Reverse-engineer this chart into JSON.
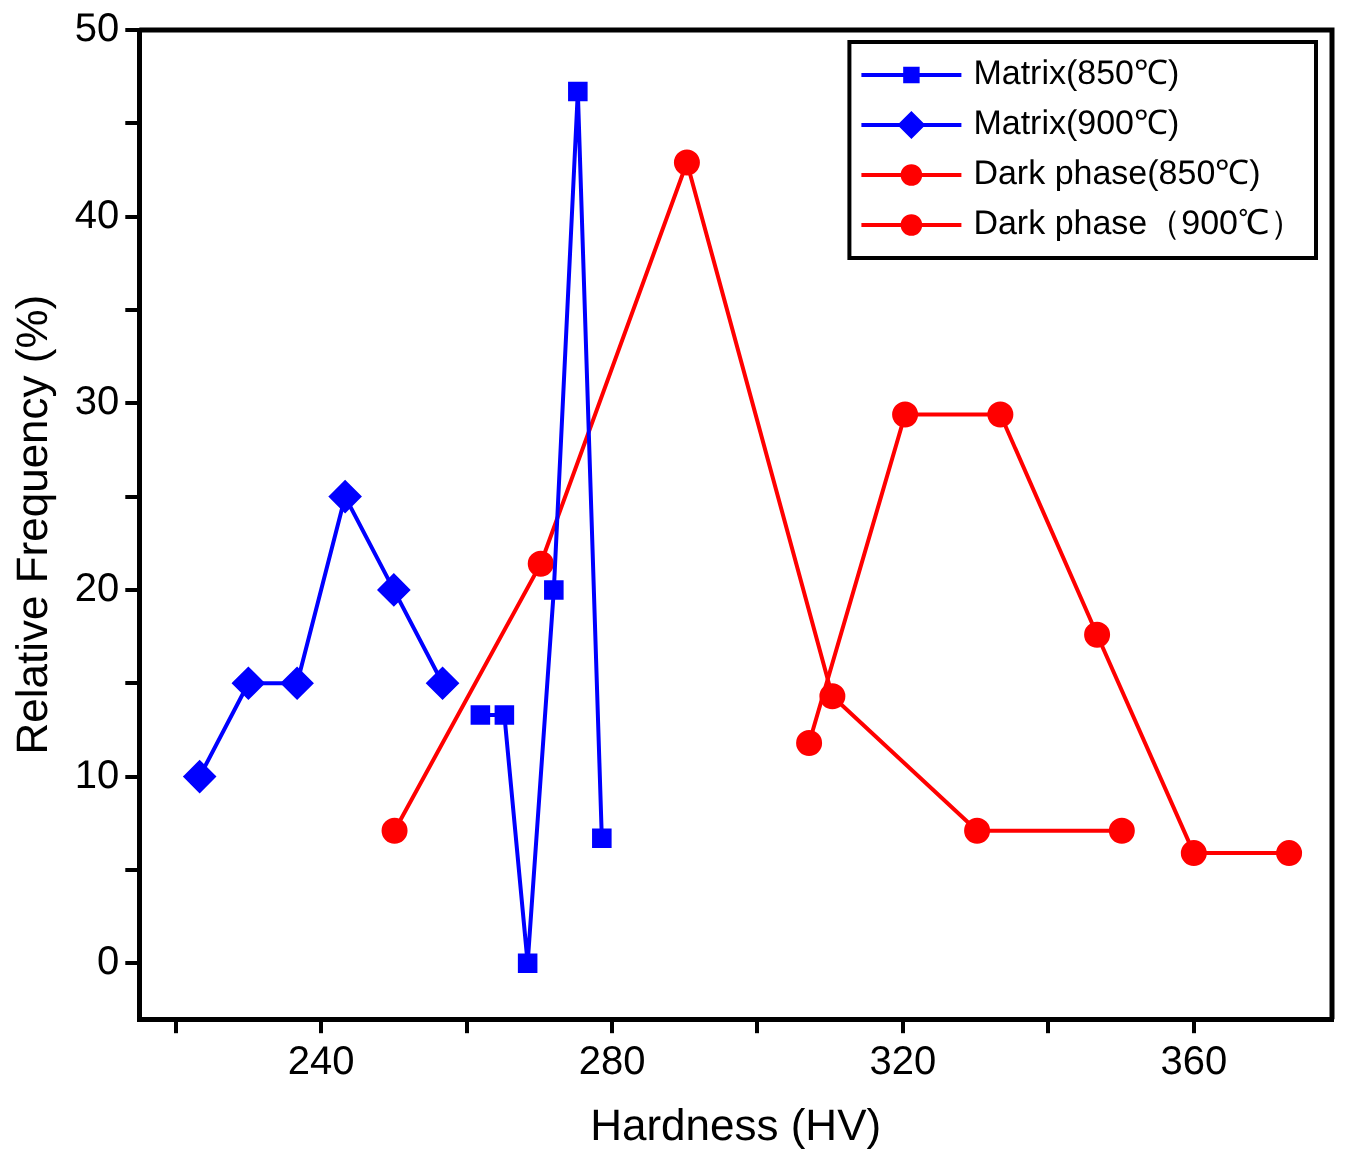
{
  "chart_data": {
    "type": "line",
    "xlabel": "Hardness (HV)",
    "ylabel": "Relative Frequency (%)",
    "xlim": [
      215,
      379
    ],
    "ylim": [
      -3,
      50
    ],
    "xticks": [
      {
        "value": 220,
        "label": null
      },
      240,
      {
        "value": 260,
        "label": null
      },
      280,
      {
        "value": 300,
        "label": null
      },
      320,
      {
        "value": 340,
        "label": null
      },
      360
    ],
    "yticks": [
      0,
      {
        "value": 5,
        "label": null
      },
      10,
      {
        "value": 15,
        "label": null
      },
      20,
      {
        "value": 25,
        "label": null
      },
      30,
      {
        "value": 35,
        "label": null
      },
      40,
      {
        "value": 45,
        "label": null
      },
      50
    ],
    "grid": false,
    "legend": "top right",
    "line_style": "solid",
    "series": [
      {
        "name": "Matrix(850℃)",
        "color": "#0000ff",
        "marker": "square",
        "x": [
          261.9,
          265.2,
          268.4,
          272.0,
          275.3,
          278.6
        ],
        "values": [
          13.3,
          13.3,
          0,
          20,
          46.7,
          6.7
        ]
      },
      {
        "name": "Matrix(900℃)",
        "color": "#0000ff",
        "marker": "diamond",
        "x": [
          223.3,
          230,
          236.7,
          243.3,
          250,
          256.7
        ],
        "values": [
          10,
          15,
          15,
          25,
          20,
          15
        ]
      },
      {
        "name": "Dark phase(850℃)",
        "color": "#ff0000",
        "marker": "circle",
        "x": [
          307.1,
          320.3,
          333.4,
          346.7,
          360,
          373.1
        ],
        "values": [
          11.8,
          29.4,
          29.4,
          17.6,
          5.9,
          5.9
        ]
      },
      {
        "name": "Dark phase（900℃）",
        "color": "#ff0000",
        "marker": "circle",
        "x": [
          250.1,
          270.2,
          290.3,
          310.3,
          330.2,
          350.1
        ],
        "values": [
          7.1,
          21.4,
          42.9,
          14.3,
          7.1,
          7.1
        ]
      }
    ]
  }
}
